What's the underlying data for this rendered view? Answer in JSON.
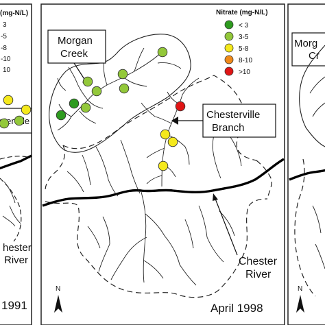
{
  "legend": {
    "center_title": "Nitrate (mg-N/L)",
    "left_title": "(mg-N/L)",
    "classes": [
      {
        "label": "< 3",
        "left_label": "3",
        "color": "#2e9b1f"
      },
      {
        "label": "3-5",
        "left_label": "-5",
        "color": "#93c83a"
      },
      {
        "label": "5-8",
        "left_label": "-8",
        "color": "#f5e91c"
      },
      {
        "label": "8-10",
        "left_label": "-10",
        "color": "#f08a1a"
      },
      {
        "label": ">10",
        "left_label": "10",
        "color": "#e01515"
      }
    ]
  },
  "panels": {
    "left": {
      "date": "1991",
      "callout_partial": "sterville"
    },
    "center": {
      "date": "April 1998"
    },
    "right": {
      "callout_line1": "Morg",
      "callout_line2": "Cr"
    }
  },
  "labels": {
    "morgan_creek_line1": "Morgan",
    "morgan_creek_line2": "Creek",
    "chesterville_line1": "Chesterville",
    "chesterville_line2": "Branch",
    "chester_river_line1": "Chester",
    "chester_river_line2": "River",
    "left_river_line1": "hester",
    "left_river_line2": "River",
    "north": "N"
  },
  "sites": {
    "center": [
      {
        "klass": 1
      },
      {
        "klass": 1
      },
      {
        "klass": 1
      },
      {
        "klass": 1
      },
      {
        "klass": 1
      },
      {
        "klass": 1
      },
      {
        "klass": 0
      },
      {
        "klass": 0
      },
      {
        "klass": 4
      },
      {
        "klass": 2
      },
      {
        "klass": 2
      },
      {
        "klass": 2
      }
    ],
    "left": [
      {
        "klass": 2
      },
      {
        "klass": 2
      },
      {
        "klass": 1
      },
      {
        "klass": 1
      }
    ]
  }
}
